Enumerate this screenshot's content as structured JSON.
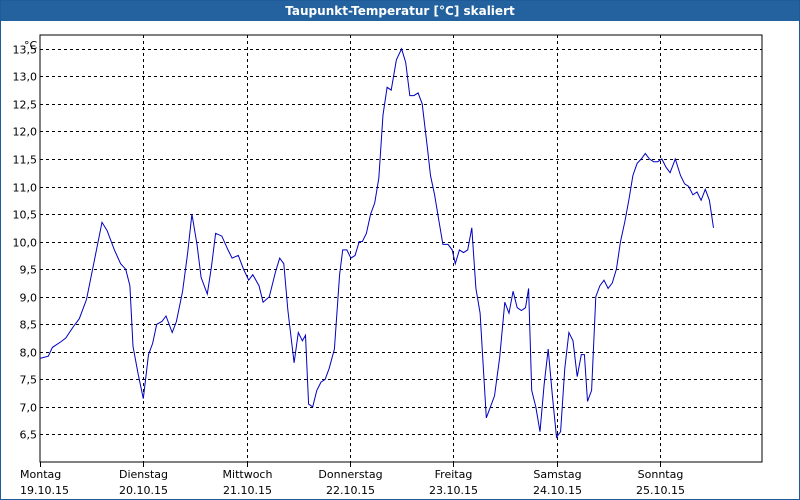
{
  "window": {
    "title": "Taupunkt-Temperatur [°C] skaliert"
  },
  "chart_data": {
    "type": "line",
    "title": "Taupunkt-Temperatur [°C] skaliert",
    "ylabel": "°C",
    "xlabel": "",
    "ylim": [
      6.0,
      13.75
    ],
    "y_ticks": [
      "6,5",
      "7,0",
      "7,5",
      "8,0",
      "8,5",
      "9,0",
      "9,5",
      "10,0",
      "10,5",
      "11,0",
      "11,5",
      "12,0",
      "12,5",
      "13,0",
      "13,5"
    ],
    "y_tick_values": [
      6.5,
      7.0,
      7.5,
      8.0,
      8.5,
      9.0,
      9.5,
      10.0,
      10.5,
      11.0,
      11.5,
      12.0,
      12.5,
      13.0,
      13.5
    ],
    "x_range_days": [
      0,
      7
    ],
    "x_ticks": [
      {
        "day": "Montag",
        "date": "19.10.15"
      },
      {
        "day": "Dienstag",
        "date": "20.10.15"
      },
      {
        "day": "Mittwoch",
        "date": "21.10.15"
      },
      {
        "day": "Donnerstag",
        "date": "22.10.15"
      },
      {
        "day": "Freitag",
        "date": "23.10.15"
      },
      {
        "day": "Samstag",
        "date": "24.10.15"
      },
      {
        "day": "Sonntag",
        "date": "25.10.15"
      }
    ],
    "grid": true,
    "series": [
      {
        "color": "#0000c0",
        "points": [
          [
            0.0,
            7.88
          ],
          [
            0.08,
            7.92
          ],
          [
            0.12,
            8.08
          ],
          [
            0.2,
            8.18
          ],
          [
            0.25,
            8.25
          ],
          [
            0.32,
            8.45
          ],
          [
            0.38,
            8.6
          ],
          [
            0.45,
            8.95
          ],
          [
            0.52,
            9.6
          ],
          [
            0.6,
            10.35
          ],
          [
            0.65,
            10.2
          ],
          [
            0.72,
            9.85
          ],
          [
            0.78,
            9.6
          ],
          [
            0.83,
            9.5
          ],
          [
            0.87,
            9.2
          ],
          [
            0.9,
            8.1
          ],
          [
            0.95,
            7.6
          ],
          [
            1.0,
            7.15
          ],
          [
            1.05,
            7.95
          ],
          [
            1.09,
            8.15
          ],
          [
            1.13,
            8.5
          ],
          [
            1.18,
            8.55
          ],
          [
            1.22,
            8.65
          ],
          [
            1.28,
            8.35
          ],
          [
            1.32,
            8.55
          ],
          [
            1.38,
            9.1
          ],
          [
            1.43,
            9.8
          ],
          [
            1.47,
            10.5
          ],
          [
            1.52,
            9.95
          ],
          [
            1.56,
            9.35
          ],
          [
            1.62,
            9.05
          ],
          [
            1.66,
            9.55
          ],
          [
            1.7,
            10.15
          ],
          [
            1.76,
            10.1
          ],
          [
            1.82,
            9.85
          ],
          [
            1.86,
            9.7
          ],
          [
            1.92,
            9.75
          ],
          [
            1.97,
            9.5
          ],
          [
            2.02,
            9.3
          ],
          [
            2.06,
            9.4
          ],
          [
            2.12,
            9.2
          ],
          [
            2.16,
            8.9
          ],
          [
            2.22,
            9.0
          ],
          [
            2.28,
            9.45
          ],
          [
            2.32,
            9.7
          ],
          [
            2.36,
            9.6
          ],
          [
            2.4,
            8.75
          ],
          [
            2.46,
            7.8
          ],
          [
            2.5,
            8.35
          ],
          [
            2.54,
            8.2
          ],
          [
            2.57,
            8.3
          ],
          [
            2.6,
            7.05
          ],
          [
            2.64,
            7.0
          ],
          [
            2.68,
            7.3
          ],
          [
            2.72,
            7.45
          ],
          [
            2.76,
            7.5
          ],
          [
            2.8,
            7.7
          ],
          [
            2.85,
            8.05
          ],
          [
            2.9,
            9.4
          ],
          [
            2.93,
            9.85
          ],
          [
            2.97,
            9.85
          ],
          [
            3.01,
            9.7
          ],
          [
            3.05,
            9.75
          ],
          [
            3.09,
            10.0
          ],
          [
            3.12,
            10.0
          ],
          [
            3.16,
            10.15
          ],
          [
            3.2,
            10.5
          ],
          [
            3.24,
            10.7
          ],
          [
            3.28,
            11.15
          ],
          [
            3.32,
            12.3
          ],
          [
            3.36,
            12.8
          ],
          [
            3.4,
            12.75
          ],
          [
            3.45,
            13.3
          ],
          [
            3.5,
            13.5
          ],
          [
            3.54,
            13.25
          ],
          [
            3.58,
            12.65
          ],
          [
            3.62,
            12.65
          ],
          [
            3.66,
            12.7
          ],
          [
            3.7,
            12.5
          ],
          [
            3.75,
            11.7
          ],
          [
            3.78,
            11.2
          ],
          [
            3.82,
            10.85
          ],
          [
            3.86,
            10.4
          ],
          [
            3.9,
            9.95
          ],
          [
            3.95,
            9.95
          ],
          [
            3.99,
            9.85
          ],
          [
            4.02,
            9.6
          ],
          [
            4.06,
            9.85
          ],
          [
            4.1,
            9.8
          ],
          [
            4.14,
            9.85
          ],
          [
            4.18,
            10.25
          ],
          [
            4.22,
            9.15
          ],
          [
            4.26,
            8.7
          ],
          [
            4.32,
            6.8
          ],
          [
            4.36,
            7.0
          ],
          [
            4.4,
            7.2
          ],
          [
            4.45,
            7.9
          ],
          [
            4.5,
            8.9
          ],
          [
            4.54,
            8.7
          ],
          [
            4.58,
            9.1
          ],
          [
            4.62,
            8.8
          ],
          [
            4.66,
            8.75
          ],
          [
            4.7,
            8.8
          ],
          [
            4.73,
            9.15
          ],
          [
            4.76,
            7.3
          ],
          [
            4.8,
            7.0
          ],
          [
            4.84,
            6.55
          ],
          [
            4.88,
            7.4
          ],
          [
            4.92,
            8.05
          ],
          [
            4.96,
            7.2
          ],
          [
            5.0,
            6.45
          ],
          [
            5.04,
            6.55
          ],
          [
            5.08,
            7.7
          ],
          [
            5.12,
            8.35
          ],
          [
            5.16,
            8.2
          ],
          [
            5.2,
            7.55
          ],
          [
            5.24,
            7.95
          ],
          [
            5.27,
            7.95
          ],
          [
            5.3,
            7.1
          ],
          [
            5.34,
            7.3
          ],
          [
            5.38,
            9.0
          ],
          [
            5.42,
            9.2
          ],
          [
            5.46,
            9.3
          ],
          [
            5.5,
            9.15
          ],
          [
            5.54,
            9.25
          ],
          [
            5.58,
            9.5
          ],
          [
            5.62,
            10.0
          ],
          [
            5.66,
            10.35
          ],
          [
            5.7,
            10.75
          ],
          [
            5.74,
            11.2
          ],
          [
            5.78,
            11.42
          ],
          [
            5.82,
            11.5
          ],
          [
            5.86,
            11.6
          ],
          [
            5.9,
            11.5
          ],
          [
            5.94,
            11.45
          ],
          [
            5.98,
            11.45
          ],
          [
            6.02,
            11.5
          ],
          [
            6.06,
            11.35
          ],
          [
            6.1,
            11.25
          ],
          [
            6.15,
            11.5
          ],
          [
            6.2,
            11.2
          ],
          [
            6.24,
            11.05
          ],
          [
            6.28,
            11.0
          ],
          [
            6.32,
            10.85
          ],
          [
            6.36,
            10.9
          ],
          [
            6.4,
            10.75
          ],
          [
            6.44,
            10.95
          ],
          [
            6.48,
            10.75
          ],
          [
            6.52,
            10.25
          ]
        ]
      }
    ]
  }
}
